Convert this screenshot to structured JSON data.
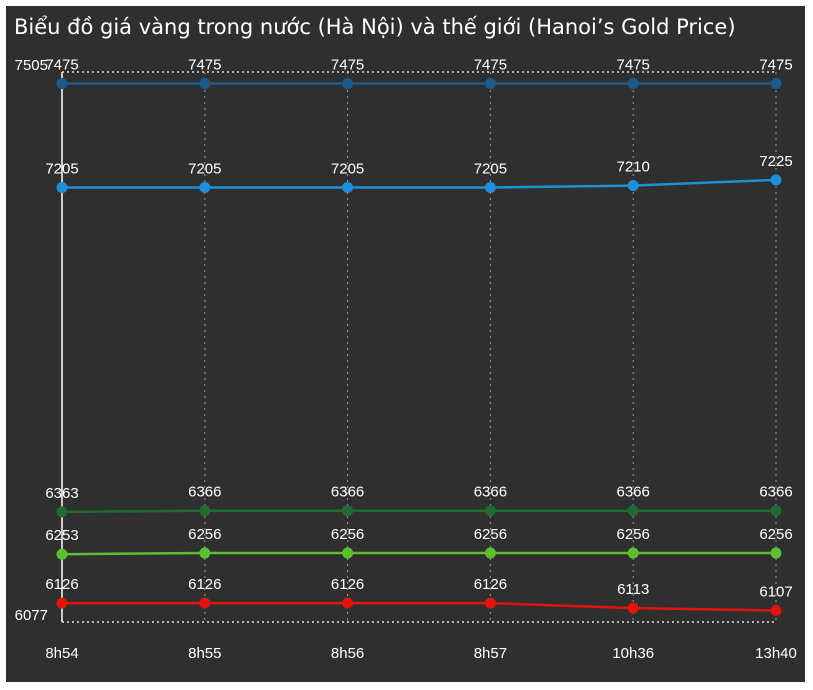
{
  "chart_data": {
    "type": "line",
    "title": "Biểu đồ giá vàng trong nước (Hà Nội) và thế giới (Hanoi’s Gold Price)",
    "categories": [
      "8h54",
      "8h55",
      "8h56",
      "8h57",
      "10h36",
      "13h40"
    ],
    "series": [
      {
        "color": "#1d5a8a",
        "values": [
          7475,
          7475,
          7475,
          7475,
          7475,
          7475
        ]
      },
      {
        "color": "#1e8fd8",
        "values": [
          7205,
          7205,
          7205,
          7205,
          7210,
          7225
        ]
      },
      {
        "color": "#1f6b33",
        "values": [
          6363,
          6366,
          6366,
          6366,
          6366,
          6366
        ]
      },
      {
        "color": "#5cbf2f",
        "values": [
          6253,
          6256,
          6256,
          6256,
          6256,
          6256
        ]
      },
      {
        "color": "#e3130f",
        "values": [
          6126,
          6126,
          6126,
          6126,
          6113,
          6107
        ]
      }
    ],
    "ylim": [
      6077,
      7505
    ],
    "yticks": [
      6077,
      7505
    ],
    "grid": true
  }
}
